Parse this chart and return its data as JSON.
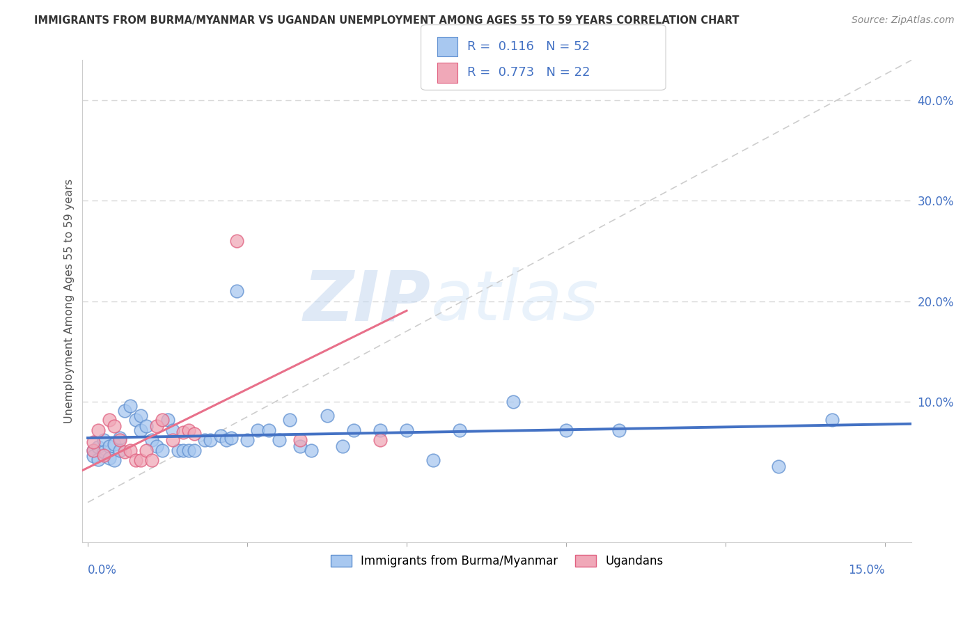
{
  "title": "IMMIGRANTS FROM BURMA/MYANMAR VS UGANDAN UNEMPLOYMENT AMONG AGES 55 TO 59 YEARS CORRELATION CHART",
  "source": "Source: ZipAtlas.com",
  "ylabel": "Unemployment Among Ages 55 to 59 years",
  "blue_R": "0.116",
  "blue_N": "52",
  "pink_R": "0.773",
  "pink_N": "22",
  "legend_label1": "Immigrants from Burma/Myanmar",
  "legend_label2": "Ugandans",
  "watermark_zip": "ZIP",
  "watermark_atlas": "atlas",
  "xlim": [
    -0.001,
    0.155
  ],
  "ylim": [
    -0.04,
    0.44
  ],
  "yticks": [
    0.1,
    0.2,
    0.3,
    0.4
  ],
  "xtick_positions": [
    0.0,
    0.03,
    0.06,
    0.09,
    0.12,
    0.15
  ],
  "blue_line_color": "#4472C4",
  "pink_line_color": "#E8708A",
  "scatter_blue_face": "#A8C8F0",
  "scatter_blue_edge": "#6090D0",
  "scatter_pink_face": "#F0A8B8",
  "scatter_pink_edge": "#E06080",
  "diagonal_color": "#C8C8C8",
  "grid_color": "#D8D8D8",
  "title_color": "#333333",
  "axis_tick_color": "#4472C4",
  "blue_x": [
    0.001,
    0.001,
    0.002,
    0.002,
    0.003,
    0.003,
    0.004,
    0.004,
    0.005,
    0.005,
    0.006,
    0.006,
    0.007,
    0.008,
    0.009,
    0.01,
    0.01,
    0.011,
    0.012,
    0.013,
    0.014,
    0.015,
    0.016,
    0.017,
    0.018,
    0.019,
    0.02,
    0.022,
    0.023,
    0.025,
    0.026,
    0.027,
    0.028,
    0.03,
    0.032,
    0.034,
    0.036,
    0.038,
    0.04,
    0.042,
    0.045,
    0.048,
    0.05,
    0.055,
    0.06,
    0.065,
    0.07,
    0.08,
    0.09,
    0.1,
    0.13,
    0.14
  ],
  "blue_y": [
    0.052,
    0.046,
    0.055,
    0.043,
    0.062,
    0.05,
    0.056,
    0.044,
    0.058,
    0.042,
    0.064,
    0.052,
    0.091,
    0.096,
    0.082,
    0.072,
    0.086,
    0.076,
    0.062,
    0.056,
    0.052,
    0.082,
    0.072,
    0.052,
    0.052,
    0.052,
    0.052,
    0.062,
    0.062,
    0.066,
    0.062,
    0.064,
    0.21,
    0.062,
    0.072,
    0.072,
    0.062,
    0.082,
    0.056,
    0.052,
    0.086,
    0.056,
    0.072,
    0.072,
    0.072,
    0.042,
    0.072,
    0.1,
    0.072,
    0.072,
    0.036,
    0.082
  ],
  "pink_x": [
    0.001,
    0.001,
    0.002,
    0.003,
    0.004,
    0.005,
    0.006,
    0.007,
    0.008,
    0.009,
    0.01,
    0.011,
    0.012,
    0.013,
    0.014,
    0.016,
    0.018,
    0.019,
    0.02,
    0.028,
    0.04,
    0.055
  ],
  "pink_y": [
    0.052,
    0.06,
    0.072,
    0.047,
    0.082,
    0.076,
    0.062,
    0.05,
    0.052,
    0.042,
    0.042,
    0.052,
    0.042,
    0.076,
    0.082,
    0.062,
    0.07,
    0.072,
    0.068,
    0.26,
    0.062,
    0.062
  ]
}
